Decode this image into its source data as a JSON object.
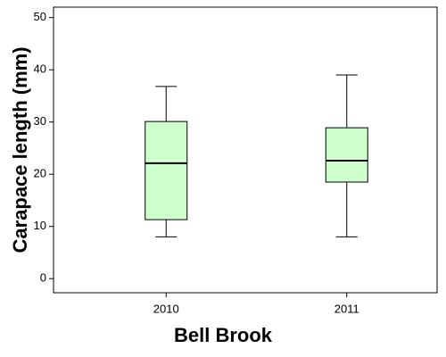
{
  "chart_data": {
    "type": "box",
    "x_label": "Bell Brook",
    "y_label": "Carapace length (mm)",
    "categories": [
      "2010",
      "2011"
    ],
    "boxes": [
      {
        "min": 8,
        "q1": 11.3,
        "median": 22.1,
        "q3": 30.1,
        "max": 36.8
      },
      {
        "min": 8,
        "q1": 18.5,
        "median": 22.6,
        "q3": 28.9,
        "max": 39
      }
    ],
    "color": "#ccffcc",
    "ylim": [
      -2.7,
      52
    ],
    "yticks": [
      0,
      10,
      20,
      30,
      40,
      50
    ]
  }
}
